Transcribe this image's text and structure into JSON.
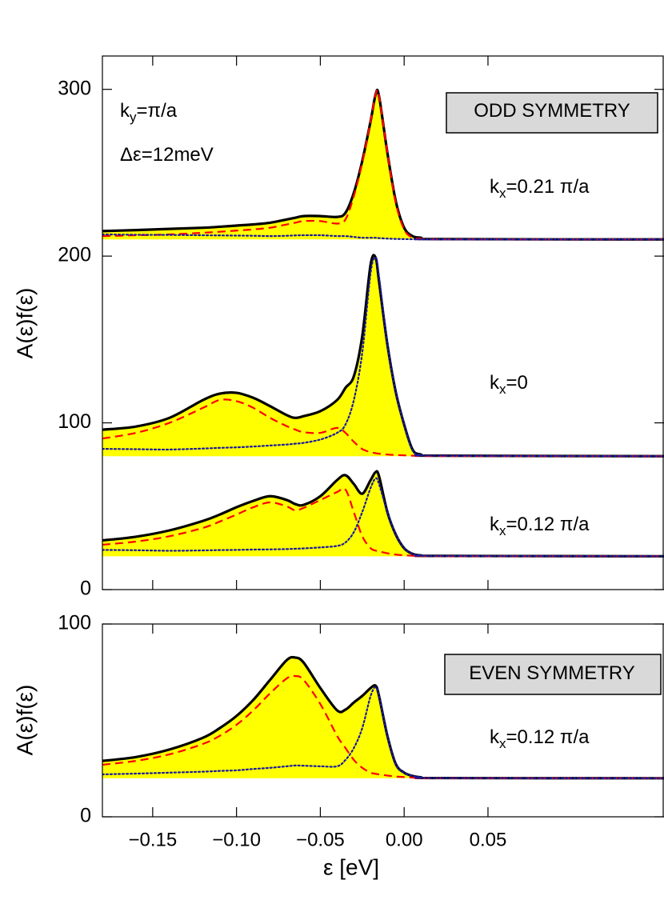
{
  "chart_data": [
    {
      "type": "line",
      "ylabel": "A(ε)f(ε)",
      "xlim": [
        -0.18,
        0.155
      ],
      "ylim": [
        0,
        320
      ],
      "yticks": [
        0,
        100,
        200,
        300
      ],
      "x": [
        -0.18,
        -0.16,
        -0.14,
        -0.12,
        -0.11,
        -0.1,
        -0.09,
        -0.08,
        -0.07,
        -0.065,
        -0.06,
        -0.05,
        -0.04,
        -0.035,
        -0.03,
        -0.025,
        -0.02,
        -0.017,
        -0.015,
        -0.01,
        -0.005,
        0,
        0.005,
        0.01,
        0.02,
        0.155
      ],
      "groups": [
        {
          "baseline": 210,
          "fill": "#ffff00",
          "series": [
            {
              "color": "#000000",
              "style": "solid",
              "values": [
                215,
                215.6,
                216.3,
                217,
                217.6,
                218.3,
                219,
                220,
                222,
                223,
                224,
                224,
                223.5,
                226,
                238,
                257,
                281,
                297,
                296,
                262,
                233,
                217,
                212,
                211,
                210.2,
                210
              ]
            },
            {
              "color": "#ff0000",
              "style": "dashed",
              "values": [
                212,
                212.5,
                213,
                214,
                214.6,
                215.3,
                216,
                217,
                219,
                220,
                221,
                221,
                219.5,
                222,
                236,
                256,
                281,
                297,
                296,
                262,
                232,
                216,
                211,
                210.5,
                210.1,
                210
              ]
            },
            {
              "color": "#1a1aa0",
              "style": "dotted",
              "values": [
                213,
                212.8,
                212.7,
                212.5,
                212.4,
                212.3,
                212.2,
                212,
                212.2,
                212.4,
                212.5,
                212.5,
                212,
                212,
                211.5,
                211,
                211,
                211,
                210.8,
                210.5,
                210.3,
                210.2,
                210.1,
                210,
                210,
                210
              ]
            }
          ]
        },
        {
          "baseline": 80,
          "fill": "#ffff00",
          "series": [
            {
              "color": "#000000",
              "style": "solid",
              "values": [
                95.9,
                97.8,
                103,
                113.7,
                117.5,
                118,
                115,
                110,
                104.6,
                103,
                104,
                107,
                113.7,
                121,
                128,
                152,
                195,
                199,
                185,
                147,
                118.5,
                99,
                84,
                81,
                80.3,
                80
              ]
            },
            {
              "color": "#ff0000",
              "style": "dashed",
              "values": [
                90.6,
                94,
                100,
                109,
                113.7,
                113,
                109,
                103,
                98,
                96,
                94.4,
                94,
                97,
                94,
                88.6,
                84.3,
                82.4,
                81.8,
                81.5,
                81,
                80.7,
                80.5,
                80.3,
                80.2,
                80.1,
                80
              ]
            },
            {
              "color": "#1a1aa0",
              "style": "dotted",
              "values": [
                84.4,
                84.2,
                84,
                84.6,
                85,
                85.3,
                85.8,
                86.4,
                87,
                87.5,
                88,
                90,
                94,
                99,
                113.7,
                142,
                190,
                199,
                188,
                147,
                118.5,
                99,
                83.5,
                80.8,
                80.3,
                80
              ]
            }
          ]
        },
        {
          "baseline": 20,
          "fill": "#ffff00",
          "series": [
            {
              "color": "#000000",
              "style": "solid",
              "values": [
                29.5,
                31.7,
                35.5,
                41.2,
                45,
                49.4,
                53.2,
                56,
                53.7,
                51.3,
                50.8,
                56,
                65.7,
                68.6,
                63.3,
                57.5,
                65.7,
                70.5,
                68,
                46.5,
                33,
                24.8,
                21.4,
                20.5,
                20.2,
                20
              ]
            },
            {
              "color": "#ff0000",
              "style": "dashed",
              "values": [
                26.9,
                28.8,
                32,
                37,
                40.8,
                45,
                49.4,
                52.3,
                49.9,
                47.5,
                49,
                53.7,
                58.5,
                60,
                46.4,
                32,
                24.8,
                23.4,
                23,
                21.8,
                21,
                20.6,
                20.3,
                20.1,
                20.05,
                20
              ]
            },
            {
              "color": "#1a1aa0",
              "style": "dotted",
              "values": [
                23.8,
                23.6,
                23.3,
                23.5,
                23.7,
                23.8,
                24,
                24.1,
                24.3,
                24.5,
                24.7,
                25.3,
                26.2,
                28.3,
                34.5,
                46.5,
                61,
                66.7,
                63.3,
                46.5,
                33,
                24.8,
                21.4,
                20.5,
                20.2,
                20
              ]
            }
          ]
        }
      ],
      "annotations": [
        {
          "parts": [
            "k",
            "y",
            "=π/a"
          ]
        },
        {
          "parts": [
            "Δε=12meV"
          ]
        },
        {
          "parts": [
            "ODD SYMMETRY"
          ],
          "boxed": true
        },
        {
          "parts": [
            "k",
            "x",
            "=0.21 π/a"
          ]
        },
        {
          "parts": [
            "k",
            "x",
            "=0"
          ]
        },
        {
          "parts": [
            "k",
            "x",
            "=0.12 π/a"
          ]
        }
      ]
    },
    {
      "type": "line",
      "ylabel": "A(ε)f(ε)",
      "xlabel": "ε [eV]",
      "xlim": [
        -0.18,
        0.155
      ],
      "xticks": [
        {
          "value": -0.15,
          "label": "−0.15"
        },
        {
          "value": -0.1,
          "label": "−0.10"
        },
        {
          "value": -0.05,
          "label": "−0.05"
        },
        {
          "value": 0,
          "label": "0.00"
        },
        0.05
      ],
      "ylim": [
        0,
        100
      ],
      "yticks": [
        0,
        100
      ],
      "x": [
        -0.18,
        -0.16,
        -0.14,
        -0.12,
        -0.11,
        -0.1,
        -0.09,
        -0.08,
        -0.07,
        -0.065,
        -0.06,
        -0.05,
        -0.04,
        -0.035,
        -0.03,
        -0.025,
        -0.02,
        -0.017,
        -0.015,
        -0.01,
        -0.005,
        0,
        0.005,
        0.01,
        0.02,
        0.155
      ],
      "groups": [
        {
          "baseline": 20,
          "fill": "#ffff00",
          "series": [
            {
              "color": "#000000",
              "style": "solid",
              "values": [
                29,
                31,
                34.9,
                41,
                46,
                52.3,
                60.6,
                71,
                81.3,
                82.6,
                80,
                66.8,
                55.2,
                55.6,
                59.3,
                62.7,
                66.8,
                68,
                62.7,
                42,
                27.4,
                22.9,
                21.2,
                20.5,
                20.1,
                20
              ]
            },
            {
              "color": "#ff0000",
              "style": "dashed",
              "values": [
                27,
                29,
                32.4,
                37.8,
                42,
                47.7,
                55.2,
                64,
                71.8,
                73,
                71,
                58.5,
                42,
                35.7,
                29.5,
                25.4,
                22.9,
                22.3,
                22,
                21.4,
                20.9,
                20.6,
                20.3,
                20.1,
                20.05,
                20
              ]
            },
            {
              "color": "#1a1aa0",
              "style": "dotted",
              "values": [
                22,
                22.4,
                22.9,
                23.4,
                23.8,
                24.1,
                24.8,
                25.4,
                26.2,
                26.6,
                26.5,
                26.2,
                26.2,
                29.5,
                35.7,
                46,
                62.7,
                67.2,
                62.7,
                42,
                27.4,
                22.9,
                21.2,
                20.5,
                20.1,
                20
              ]
            }
          ]
        }
      ],
      "annotations": [
        {
          "parts": [
            "EVEN SYMMETRY"
          ],
          "boxed": true
        },
        {
          "parts": [
            "k",
            "x",
            "=0.12 π/a"
          ]
        }
      ]
    }
  ]
}
